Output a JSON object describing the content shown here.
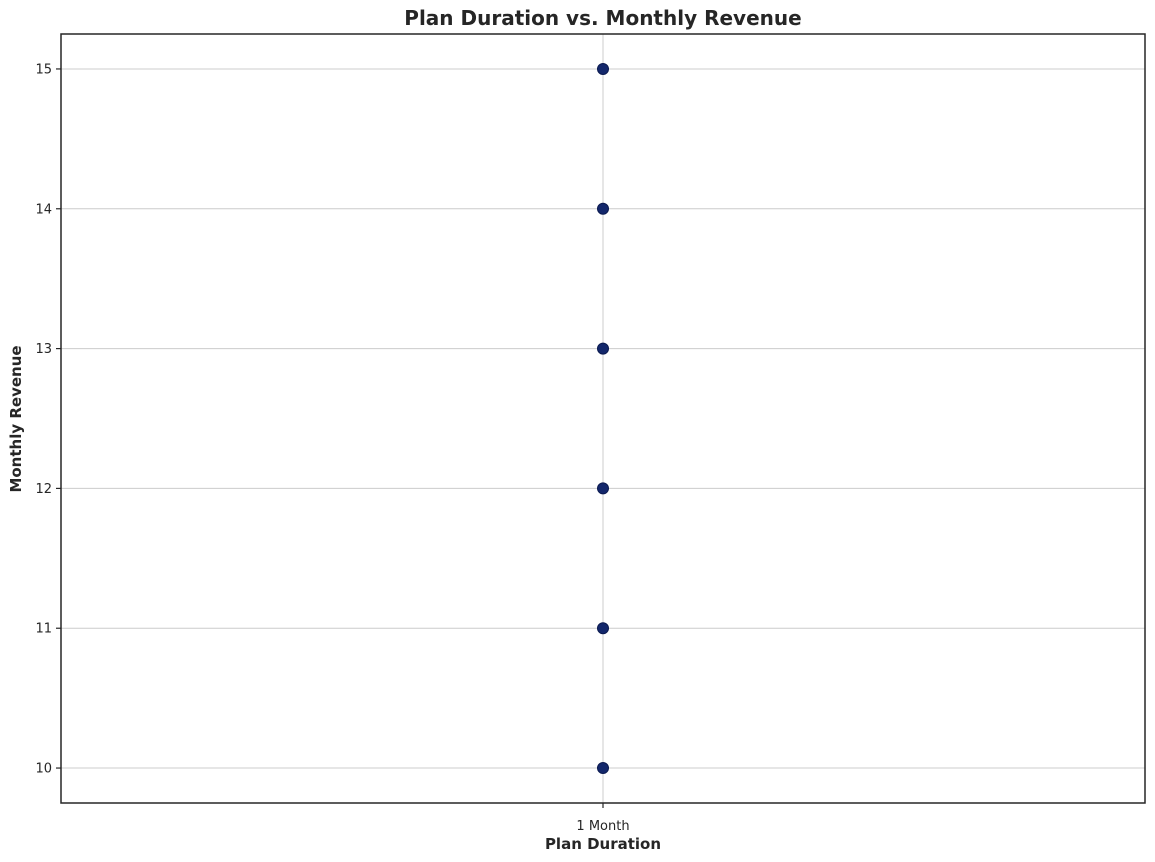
{
  "chart_data": {
    "type": "scatter",
    "title": "Plan Duration vs. Monthly Revenue",
    "xlabel": "Plan Duration",
    "ylabel": "Monthly Revenue",
    "categories": [
      "1 Month"
    ],
    "points": [
      {
        "x": "1 Month",
        "y": 10
      },
      {
        "x": "1 Month",
        "y": 11
      },
      {
        "x": "1 Month",
        "y": 12
      },
      {
        "x": "1 Month",
        "y": 13
      },
      {
        "x": "1 Month",
        "y": 14
      },
      {
        "x": "1 Month",
        "y": 15
      }
    ],
    "y_ticks": [
      10,
      11,
      12,
      13,
      14,
      15
    ],
    "ylim": [
      9.75,
      15.25
    ],
    "grid": true,
    "point_color": "#13276b",
    "grid_color": "#cccccc",
    "frame_color": "#262626"
  }
}
